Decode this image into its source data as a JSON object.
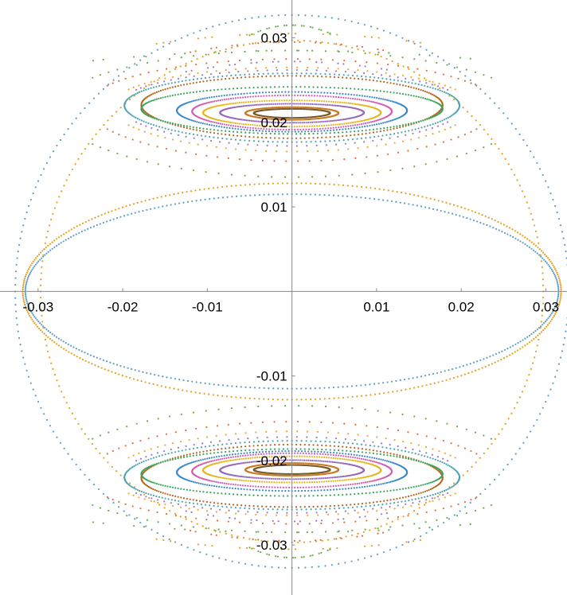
{
  "chart_data": {
    "type": "scatter",
    "title": "",
    "xlabel": "",
    "ylabel": "",
    "xlim": [
      -0.0345,
      0.0325
    ],
    "ylim": [
      -0.0345,
      0.0325
    ],
    "grid": false,
    "x_ticks": [
      {
        "value": -0.03,
        "label": "-0.03"
      },
      {
        "value": -0.02,
        "label": "-0.02"
      },
      {
        "value": -0.01,
        "label": "-0.01"
      },
      {
        "value": 0.01,
        "label": "0.01"
      },
      {
        "value": 0.02,
        "label": "0.02"
      },
      {
        "value": 0.03,
        "label": "0.03"
      }
    ],
    "y_ticks": [
      {
        "value": 0.03,
        "label": "0.03"
      },
      {
        "value": 0.02,
        "label": "0.02"
      },
      {
        "value": 0.01,
        "label": "0.01"
      },
      {
        "value": -0.01,
        "label": "-0.01"
      },
      {
        "value": -0.02,
        "label": "-0.02"
      },
      {
        "value": -0.03,
        "label": "-0.03"
      }
    ],
    "series": [
      {
        "kind": "ellipse",
        "color": "#5e9ec9",
        "rx": 0.0315,
        "ry": 0.0115,
        "cy": 0
      },
      {
        "kind": "ellipse",
        "color": "#e69f1f",
        "rx": 0.0318,
        "ry": 0.0128,
        "cy": 0
      },
      {
        "kind": "circle",
        "color": "#5e9ec9",
        "r": 0.0327
      },
      {
        "kind": "circle",
        "color": "#e69f1f",
        "r": 0.0297
      },
      {
        "kind": "island",
        "color": "#6bab4c",
        "rx": 0.028,
        "yIn": 0.0145,
        "yOut": 0.0285,
        "arc": 0.55,
        "end": 0.85
      },
      {
        "kind": "island",
        "color": "#e0713d",
        "rx": 0.0243,
        "yIn": 0.0162,
        "yOut": 0.0275,
        "arc": 0.65,
        "end": 0.9
      },
      {
        "kind": "island",
        "color": "#f4a628",
        "rx": 0.0215,
        "yIn": 0.0172,
        "yOut": 0.0265,
        "arc": 0.7,
        "end": 0.9
      },
      {
        "kind": "island",
        "color": "#9f77c9",
        "rx": 0.0205,
        "yIn": 0.0178,
        "yOut": 0.0262,
        "arc": 0.7,
        "end": 0.92
      },
      {
        "kind": "island",
        "color": "#4da3b5",
        "rx": 0.0198,
        "yIn": 0.0182,
        "yOut": 0.0258,
        "arc": 1,
        "end": 1
      },
      {
        "kind": "island",
        "color": "#b5651d",
        "rx": 0.0178,
        "yIn": 0.0186,
        "yOut": 0.0255,
        "arc": 1,
        "end": 1
      },
      {
        "kind": "island",
        "color": "#3aa35a",
        "rx": 0.0178,
        "yIn": 0.019,
        "yOut": 0.0242,
        "arc": 1,
        "end": 1
      },
      {
        "kind": "island",
        "color": "#d45cb0",
        "rx": 0.0118,
        "yIn": 0.0194,
        "yOut": 0.0232,
        "arc": 1,
        "end": 1
      },
      {
        "kind": "island",
        "color": "#3a86c8",
        "rx": 0.0136,
        "yIn": 0.0192,
        "yOut": 0.0236,
        "arc": 1,
        "end": 1
      },
      {
        "kind": "island",
        "color": "#e3b51f",
        "rx": 0.0105,
        "yIn": 0.0197,
        "yOut": 0.0226,
        "arc": 1,
        "end": 1
      },
      {
        "kind": "island",
        "color": "#9467bd",
        "rx": 0.0085,
        "yIn": 0.0201,
        "yOut": 0.0222,
        "arc": 1,
        "end": 1
      },
      {
        "kind": "island",
        "color": "#c77a24",
        "rx": 0.0055,
        "yIn": 0.0204,
        "yOut": 0.0218,
        "arc": 1,
        "end": 1
      },
      {
        "kind": "island",
        "color": "#7a5a2a",
        "rx": 0.0045,
        "yIn": 0.0206,
        "yOut": 0.0216,
        "arc": 1,
        "end": 1
      },
      {
        "kind": "band",
        "color": "#e69f1f",
        "y": 0.0305,
        "rx": 0.016,
        "dash": 3
      },
      {
        "kind": "band",
        "color": "#6bab4c",
        "y": 0.0315,
        "rx": 0.005,
        "dash": 2
      },
      {
        "kind": "band",
        "color": "#e0713d",
        "y": 0.0295,
        "rx": 0.012,
        "dash": 2
      },
      {
        "kind": "band",
        "color": "#6bab4c",
        "y": 0.0285,
        "rx": 0.0235,
        "dash": 2
      },
      {
        "kind": "band",
        "color": "#9f77c9",
        "y": 0.0272,
        "rx": 0.0125,
        "dash": 2
      }
    ]
  }
}
